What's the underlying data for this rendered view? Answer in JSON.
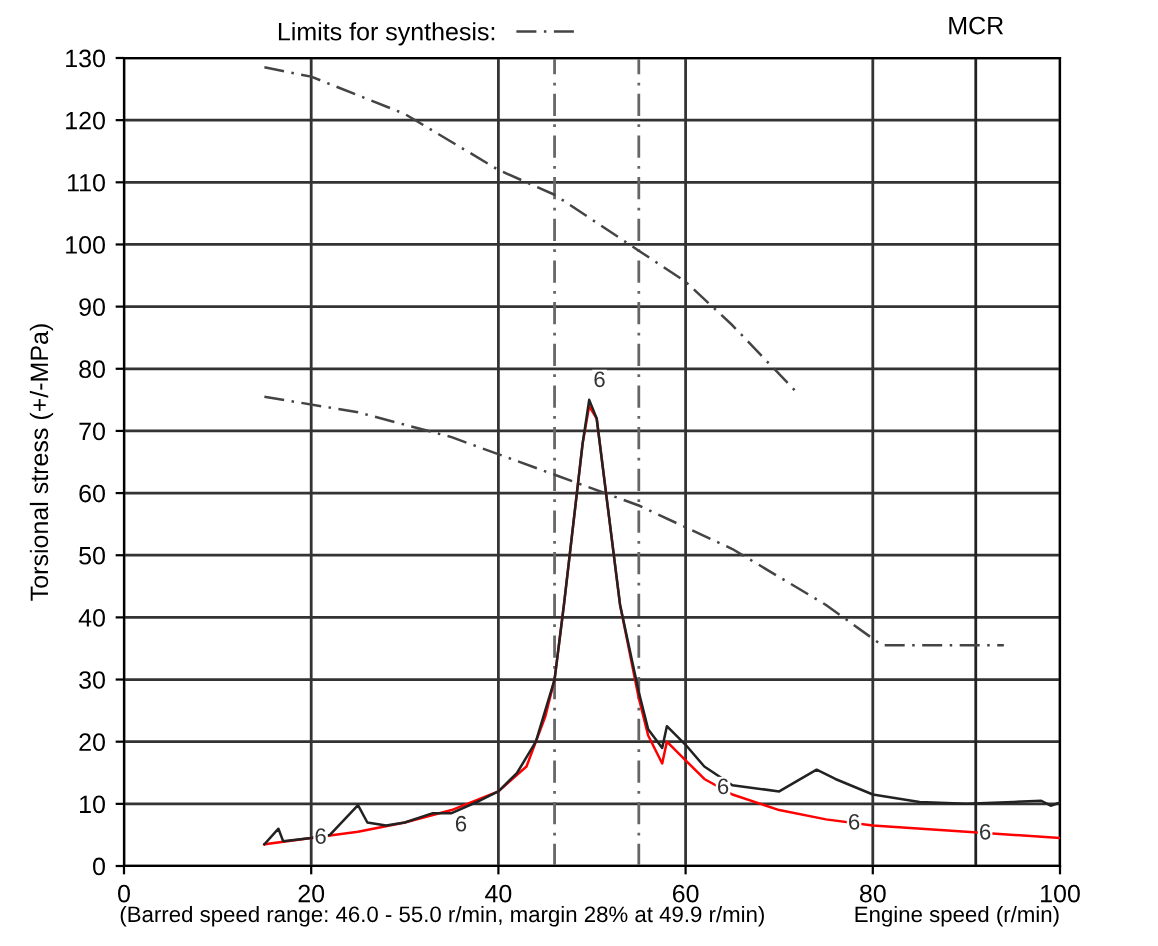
{
  "chart_data": {
    "type": "line",
    "ylabel": "Torsional stress (+/-MPa)",
    "xlabel": "Engine speed (r/min)",
    "xlim": [
      0,
      100
    ],
    "xticks": [
      0,
      20,
      40,
      60,
      80,
      100
    ],
    "ylim": [
      0,
      130
    ],
    "yticks": [
      0,
      10,
      20,
      30,
      40,
      50,
      60,
      70,
      80,
      90,
      100,
      110,
      120,
      130
    ],
    "grid": true,
    "legend": "top left",
    "marker": "none",
    "series": [
      {
        "name": "Limits for synthesis:",
        "color": "#444444",
        "line_style": "dashdot",
        "x": [
          15,
          20,
          30,
          40,
          46,
          55,
          60,
          65,
          72
        ],
        "values": [
          128.5,
          127,
          121,
          112,
          108,
          99,
          94,
          87,
          76
        ]
      },
      {
        "color": "#444444",
        "line_style": "dashdot",
        "x": [
          15,
          25,
          35,
          45,
          55,
          65,
          75,
          81,
          94
        ],
        "values": [
          75.5,
          73,
          69,
          63.5,
          58,
          51,
          42,
          35.5,
          35.5
        ]
      },
      {
        "color": "#ff0000",
        "line_style": "solid",
        "x": [
          15,
          20,
          25,
          30,
          35,
          40,
          43,
          45,
          46,
          47,
          48,
          49,
          49.7,
          50.5,
          51.5,
          53,
          55,
          56,
          57.5,
          58,
          60,
          62,
          65,
          70,
          75,
          80,
          90,
          100
        ],
        "values": [
          3.5,
          4.5,
          5.5,
          7,
          9,
          12,
          16,
          24,
          30,
          42,
          55,
          68,
          74,
          72,
          60,
          42,
          27,
          21,
          16.5,
          20,
          17,
          14,
          11.5,
          9,
          7.5,
          6.5,
          5.5,
          4.5
        ]
      },
      {
        "color": "#222222",
        "line_style": "solid",
        "x": [
          15,
          16.5,
          17,
          20,
          22,
          25,
          26,
          28,
          30,
          33,
          35,
          38,
          40,
          42,
          44,
          46,
          47,
          48,
          49,
          49.7,
          50.5,
          51.5,
          53,
          55,
          56,
          57.5,
          58,
          60,
          62,
          65,
          70,
          74,
          76,
          80,
          85,
          90,
          95,
          98,
          99,
          100
        ],
        "values": [
          3.5,
          6,
          4,
          4.5,
          5,
          9.8,
          7,
          6.5,
          7,
          8.5,
          8.5,
          10.5,
          12,
          15,
          20,
          30,
          42,
          55,
          68,
          75,
          72,
          60,
          42,
          28,
          22,
          19,
          22.5,
          19.5,
          16,
          13,
          12,
          15.5,
          14,
          11.5,
          10.3,
          10,
          10.3,
          10.5,
          9.7,
          10.2
        ]
      }
    ],
    "ref_lines": [
      {
        "axis": "x",
        "value": 46,
        "color": "#666666",
        "line_style": "dashdot"
      },
      {
        "axis": "x",
        "value": 55,
        "color": "#666666",
        "line_style": "dashdot"
      },
      {
        "axis": "x",
        "value": 91,
        "label": "MCR",
        "color": "#222222",
        "line_style": "solid"
      }
    ],
    "annotations": [
      {
        "text": "6",
        "x": 21,
        "y": 4.5
      },
      {
        "text": "6",
        "x": 36,
        "y": 6.5
      },
      {
        "text": "6",
        "x": 50.8,
        "y": 78
      },
      {
        "text": "6",
        "x": 64,
        "y": 12.5
      },
      {
        "text": "6",
        "x": 78,
        "y": 6.8
      },
      {
        "text": "6",
        "x": 92,
        "y": 5.2
      },
      "(Barred speed range: 46.0 - 55.0 r/min, margin 28% at 49.9 r/min)"
    ]
  }
}
